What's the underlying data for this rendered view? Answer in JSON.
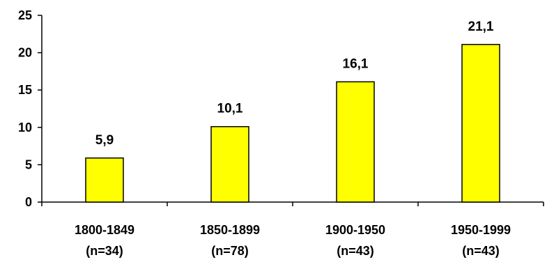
{
  "chart_data": {
    "type": "bar",
    "categories": [
      "1800-1849",
      "1850-1899",
      "1900-1950",
      "1950-1999"
    ],
    "category_sublabels": [
      "(n=34)",
      "(n=78)",
      "(n=43)",
      "(n=43)"
    ],
    "values": [
      5.9,
      10.1,
      16.1,
      21.1
    ],
    "data_labels": [
      "5,9",
      "10,1",
      "16,1",
      "21,1"
    ],
    "y_ticks": [
      0,
      5,
      10,
      15,
      20,
      25
    ],
    "ylim": [
      0,
      25
    ],
    "title": "",
    "xlabel": "",
    "ylabel": "",
    "grid": false,
    "legend": "none",
    "bar_color": "#ffff00",
    "bar_edge_color": "#000000"
  }
}
